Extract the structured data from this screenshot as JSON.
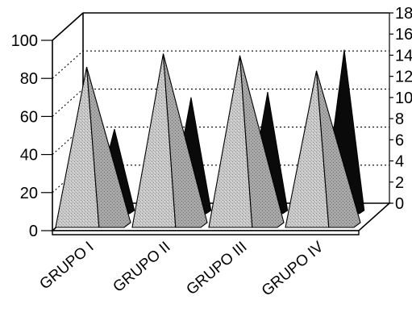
{
  "chart_data": {
    "type": "bar",
    "title": "",
    "xlabel": "",
    "ylabel": "",
    "categories": [
      "GRUPO I",
      "GRUPO II",
      "GRUPO III",
      "GRUPO IV"
    ],
    "series": [
      {
        "axis": "left",
        "values": [
          86,
          93,
          92,
          84
        ],
        "color": "#bdbdbd"
      },
      {
        "axis": "right",
        "values": [
          8,
          11,
          11.5,
          15.5
        ],
        "color": "#0a0a0a"
      }
    ],
    "y_left": {
      "lim": [
        0,
        100
      ],
      "ticks": [
        0,
        20,
        40,
        60,
        80,
        100
      ]
    },
    "y_right": {
      "lim": [
        0,
        18
      ],
      "ticks": [
        0,
        2,
        4,
        6,
        8,
        10,
        12,
        14,
        16,
        18
      ]
    },
    "grid": true,
    "legend": "none"
  }
}
